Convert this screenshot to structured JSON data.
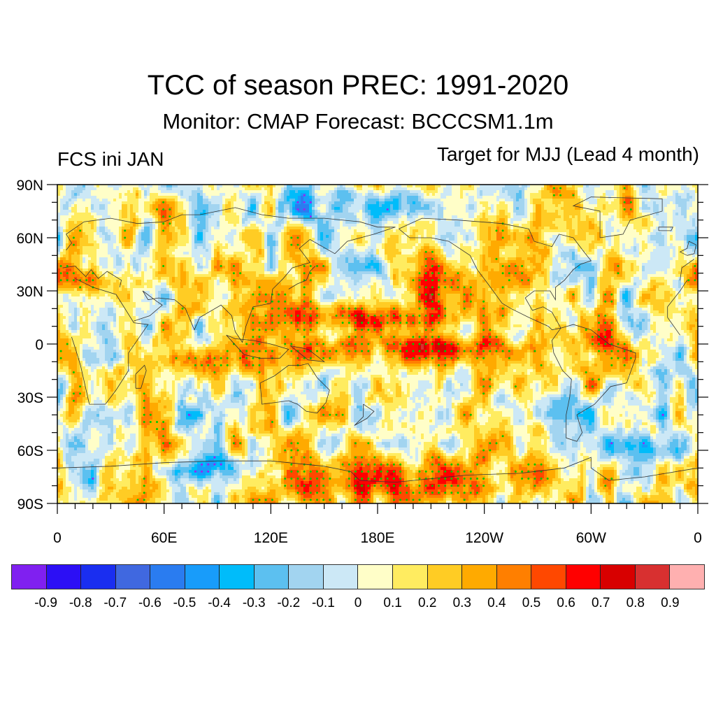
{
  "header": {
    "title": "TCC of season PREC: 1991-2020",
    "subtitle": "Monitor: CMAP   Forecast: BCCCSM1.1m",
    "left_string": "FCS ini JAN",
    "right_string": "Target for MJJ (Lead 4 month)"
  },
  "chart_data": {
    "type": "heatmap",
    "title": "TCC of season PREC: 1991-2020",
    "subtitle": "Monitor: CMAP   Forecast: BCCCSM1.1m",
    "variable": "Temporal correlation coefficient of seasonal precipitation",
    "projection": "cylindrical equidistant",
    "xlabel": "",
    "ylabel": "",
    "x_range_lon": [
      0,
      360
    ],
    "y_range_lat": [
      -90,
      90
    ],
    "x_ticks": [
      {
        "lon": 0,
        "label": "0"
      },
      {
        "lon": 60,
        "label": "60E"
      },
      {
        "lon": 120,
        "label": "120E"
      },
      {
        "lon": 180,
        "label": "180E"
      },
      {
        "lon": 240,
        "label": "120W"
      },
      {
        "lon": 300,
        "label": "60W"
      },
      {
        "lon": 360,
        "label": "0"
      }
    ],
    "y_ticks": [
      {
        "lat": 90,
        "label": "90N"
      },
      {
        "lat": 60,
        "label": "60N"
      },
      {
        "lat": 30,
        "label": "30N"
      },
      {
        "lat": 0,
        "label": "0"
      },
      {
        "lat": -30,
        "label": "30S"
      },
      {
        "lat": -60,
        "label": "60S"
      },
      {
        "lat": -90,
        "label": "90S"
      }
    ],
    "minor_tick_interval_deg": 10,
    "grid": false,
    "stippling": {
      "positive_significant_color": "#00c800",
      "negative_significant_color": "#a020f0"
    },
    "colorbar": {
      "placement": "bottom",
      "levels": [
        -0.9,
        -0.8,
        -0.7,
        -0.6,
        -0.5,
        -0.4,
        -0.3,
        -0.2,
        -0.1,
        0,
        0.1,
        0.2,
        0.3,
        0.4,
        0.5,
        0.6,
        0.7,
        0.8,
        0.9
      ],
      "labels": [
        "-0.9",
        "-0.8",
        "-0.7",
        "-0.6",
        "-0.5",
        "-0.4",
        "-0.3",
        "-0.2",
        "-0.1",
        "0",
        "0.1",
        "0.2",
        "0.3",
        "0.4",
        "0.5",
        "0.6",
        "0.7",
        "0.8",
        "0.9"
      ],
      "colors": [
        "#8020f0",
        "#2c0ff5",
        "#1a2ef0",
        "#4068e0",
        "#2a7cf0",
        "#189cfa",
        "#00bcfa",
        "#5cc0f0",
        "#a2d4f0",
        "#cce8f6",
        "#fffec8",
        "#ffec60",
        "#ffcc24",
        "#ffaa00",
        "#ff7f00",
        "#ff4800",
        "#ff0000",
        "#d80000",
        "#d83030",
        "#ffb0b0"
      ]
    },
    "features": [
      {
        "name": "Equatorial central Pacific positive band",
        "lon": [
          150,
          260
        ],
        "lat": [
          -8,
          3
        ],
        "value": 0.65
      },
      {
        "name": "North Pacific ITCZ positive band",
        "lon": [
          125,
          230
        ],
        "lat": [
          10,
          20
        ],
        "value": 0.55
      },
      {
        "name": "Northeast Pacific positive",
        "lon": [
          200,
          240
        ],
        "lat": [
          20,
          45
        ],
        "value": 0.55
      },
      {
        "name": "Caribbean / northern South America positive",
        "lon": [
          280,
          320
        ],
        "lat": [
          -20,
          15
        ],
        "value": 0.55
      },
      {
        "name": "Indian Ocean positive",
        "lon": [
          50,
          100
        ],
        "lat": [
          -15,
          -5
        ],
        "value": 0.55
      },
      {
        "name": "Antarctic coast positive",
        "lon": [
          90,
          280
        ],
        "lat": [
          -90,
          -65
        ],
        "value": 0.45
      },
      {
        "name": "Mediterranean positive",
        "lon": [
          0,
          30
        ],
        "lat": [
          32,
          40
        ],
        "value": 0.5
      },
      {
        "name": "Arctic Siberia negative",
        "lon": [
          120,
          200
        ],
        "lat": [
          70,
          85
        ],
        "value": -0.45
      },
      {
        "name": "Southern Ocean Indian sector negative",
        "lon": [
          60,
          110
        ],
        "lat": [
          -75,
          -65
        ],
        "value": -0.5
      },
      {
        "name": "South Atlantic negative",
        "lon": [
          320,
          355
        ],
        "lat": [
          -65,
          -55
        ],
        "value": -0.45
      },
      {
        "name": "Equatorial eastern Pacific negative strip",
        "lon": [
          140,
          280
        ],
        "lat": [
          4,
          9
        ],
        "value": -0.2
      }
    ]
  }
}
